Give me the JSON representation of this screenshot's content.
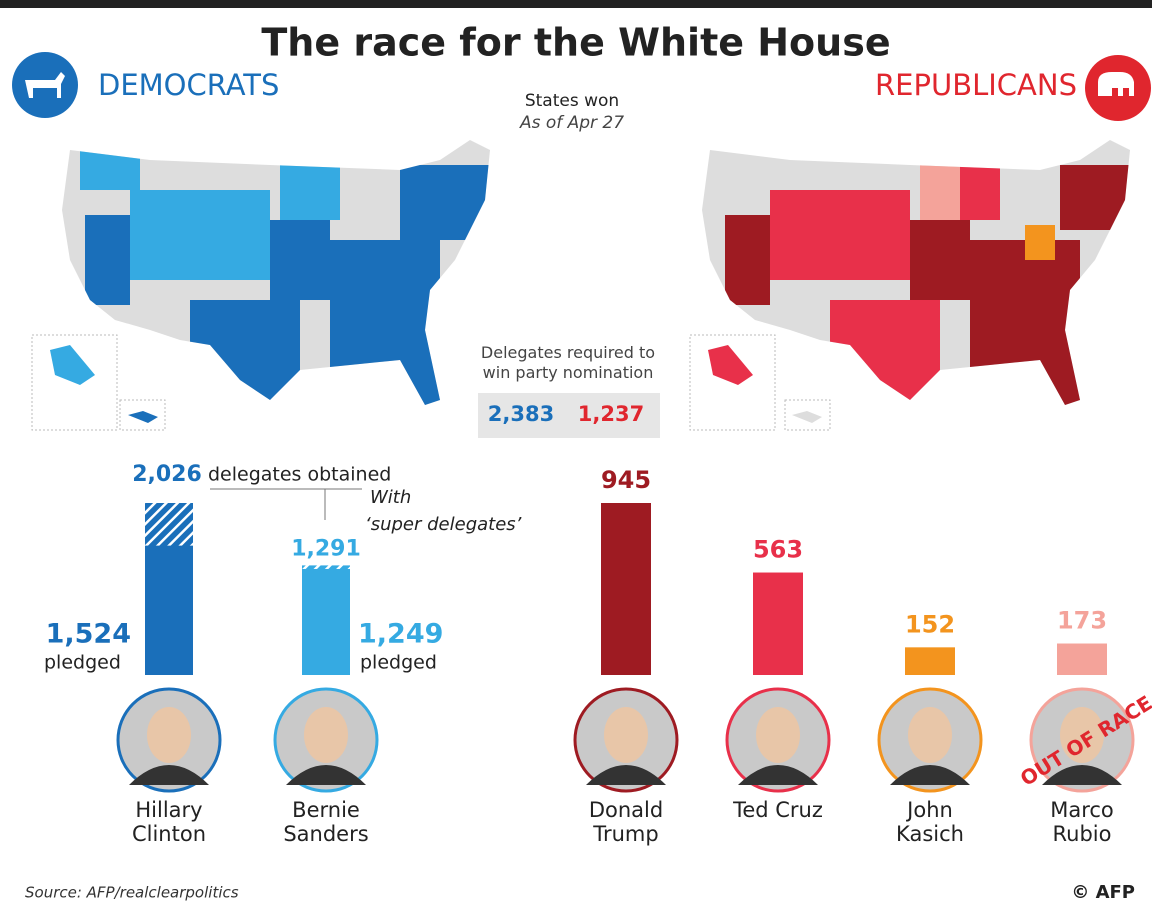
{
  "title": "The race for the White House",
  "democrats_label": "DEMOCRATS",
  "republicans_label": "REPUBLICANS",
  "states_won": {
    "title": "States won",
    "date": "As of Apr 27"
  },
  "required": {
    "text": "Delegates required to win party nomination",
    "values": [
      2383,
      1237
    ],
    "value_labels": [
      "2,383",
      "1,237"
    ],
    "colors": [
      "#1a6fba",
      "#e0262e"
    ]
  },
  "chart_data": [
    {
      "type": "bar",
      "categories": [
        "Hillary Clinton",
        "Bernie Sanders"
      ],
      "colors": [
        "#1a6fba",
        "#35aae2"
      ],
      "totals": {
        "name": "delegates obtained",
        "values": [
          2026,
          1291
        ],
        "value_labels": [
          "2,026",
          "1,291"
        ]
      },
      "series": [
        {
          "name": "pledged",
          "values": [
            1524,
            1249
          ],
          "value_labels": [
            "1,524",
            "1,249"
          ]
        }
      ],
      "annotation": "With ‘super delegates’"
    },
    {
      "type": "bar",
      "categories": [
        "Donald Trump",
        "Ted Cruz",
        "John Kasich",
        "Marco Rubio"
      ],
      "colors": [
        "#9e1b22",
        "#e8304a",
        "#f3941e",
        "#f4a39a"
      ],
      "values": [
        945,
        563,
        152,
        173
      ],
      "annotation": "OUT OF RACE"
    }
  ],
  "source": "Source: AFP/realclearpolitics",
  "credit": "© AFP"
}
